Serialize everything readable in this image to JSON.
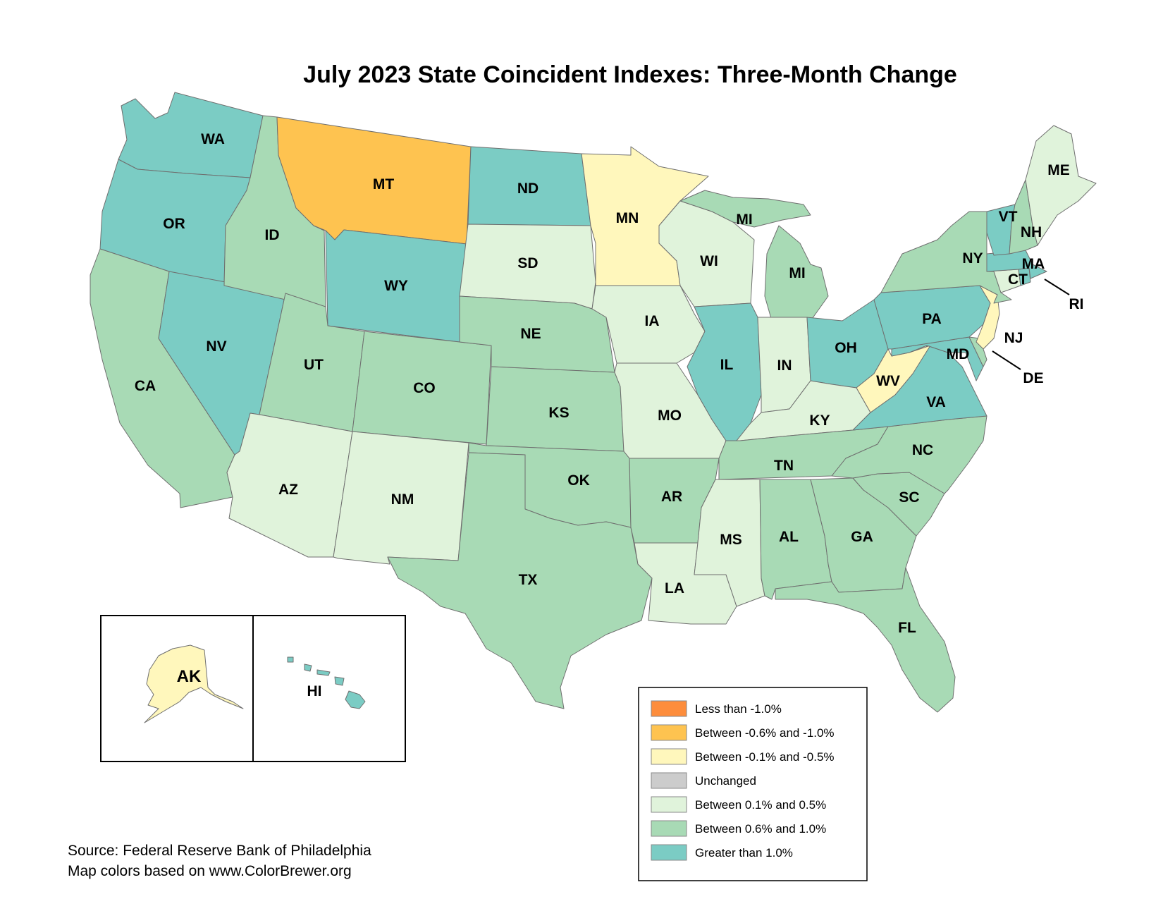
{
  "title": "July 2023 State Coincident Indexes: Three-Month Change",
  "source_lines": [
    "Source: Federal Reserve Bank of Philadelphia",
    "Map colors based on www.ColorBrewer.org"
  ],
  "legend": [
    {
      "key": "lt_neg1",
      "label": "Less than -1.0%",
      "color": "#FD8D3C"
    },
    {
      "key": "neg06_neg1",
      "label": "Between -0.6% and -1.0%",
      "color": "#FEC350"
    },
    {
      "key": "neg01_neg05",
      "label": "Between -0.1% and -0.5%",
      "color": "#FFF7BC"
    },
    {
      "key": "unchanged",
      "label": "Unchanged",
      "color": "#CCCCCC"
    },
    {
      "key": "pos01_05",
      "label": "Between 0.1% and 0.5%",
      "color": "#E0F3DB"
    },
    {
      "key": "pos06_10",
      "label": "Between 0.6% and 1.0%",
      "color": "#A8DAB5"
    },
    {
      "key": "gt1",
      "label": "Greater than 1.0%",
      "color": "#7BCCC4"
    }
  ],
  "states": {
    "WA": {
      "label": "WA",
      "category": "gt1"
    },
    "OR": {
      "label": "OR",
      "category": "gt1"
    },
    "CA": {
      "label": "CA",
      "category": "pos06_10"
    },
    "NV": {
      "label": "NV",
      "category": "gt1"
    },
    "ID": {
      "label": "ID",
      "category": "pos06_10"
    },
    "MT": {
      "label": "MT",
      "category": "neg06_neg1"
    },
    "WY": {
      "label": "WY",
      "category": "gt1"
    },
    "UT": {
      "label": "UT",
      "category": "pos06_10"
    },
    "AZ": {
      "label": "AZ",
      "category": "pos01_05"
    },
    "CO": {
      "label": "CO",
      "category": "pos06_10"
    },
    "NM": {
      "label": "NM",
      "category": "pos01_05"
    },
    "ND": {
      "label": "ND",
      "category": "gt1"
    },
    "SD": {
      "label": "SD",
      "category": "pos01_05"
    },
    "NE": {
      "label": "NE",
      "category": "pos06_10"
    },
    "KS": {
      "label": "KS",
      "category": "pos06_10"
    },
    "OK": {
      "label": "OK",
      "category": "pos06_10"
    },
    "TX": {
      "label": "TX",
      "category": "pos06_10"
    },
    "MN": {
      "label": "MN",
      "category": "neg01_neg05"
    },
    "IA": {
      "label": "IA",
      "category": "pos01_05"
    },
    "MO": {
      "label": "MO",
      "category": "pos01_05"
    },
    "AR": {
      "label": "AR",
      "category": "pos06_10"
    },
    "LA": {
      "label": "LA",
      "category": "pos01_05"
    },
    "WI": {
      "label": "WI",
      "category": "pos01_05"
    },
    "IL": {
      "label": "IL",
      "category": "gt1"
    },
    "MI": {
      "label": "MI",
      "category": "pos06_10"
    },
    "IN": {
      "label": "IN",
      "category": "pos01_05"
    },
    "OH": {
      "label": "OH",
      "category": "gt1"
    },
    "KY": {
      "label": "KY",
      "category": "pos01_05"
    },
    "TN": {
      "label": "TN",
      "category": "pos06_10"
    },
    "MS": {
      "label": "MS",
      "category": "pos01_05"
    },
    "AL": {
      "label": "AL",
      "category": "pos06_10"
    },
    "GA": {
      "label": "GA",
      "category": "pos06_10"
    },
    "FL": {
      "label": "FL",
      "category": "pos06_10"
    },
    "SC": {
      "label": "SC",
      "category": "pos06_10"
    },
    "NC": {
      "label": "NC",
      "category": "pos06_10"
    },
    "VA": {
      "label": "VA",
      "category": "gt1"
    },
    "WV": {
      "label": "WV",
      "category": "neg01_neg05"
    },
    "MD": {
      "label": "MD",
      "category": "gt1"
    },
    "DE": {
      "label": "DE",
      "category": "pos06_10"
    },
    "PA": {
      "label": "PA",
      "category": "gt1"
    },
    "NJ": {
      "label": "NJ",
      "category": "neg01_neg05"
    },
    "NY": {
      "label": "NY",
      "category": "pos06_10"
    },
    "CT": {
      "label": "CT",
      "category": "pos01_05"
    },
    "RI": {
      "label": "RI",
      "category": "gt1"
    },
    "MA": {
      "label": "MA",
      "category": "gt1"
    },
    "VT": {
      "label": "VT",
      "category": "gt1"
    },
    "NH": {
      "label": "NH",
      "category": "pos06_10"
    },
    "ME": {
      "label": "ME",
      "category": "pos01_05"
    },
    "AK": {
      "label": "AK",
      "category": "neg01_neg05"
    },
    "HI": {
      "label": "HI",
      "category": "gt1"
    }
  },
  "mi_second_label": "MI"
}
